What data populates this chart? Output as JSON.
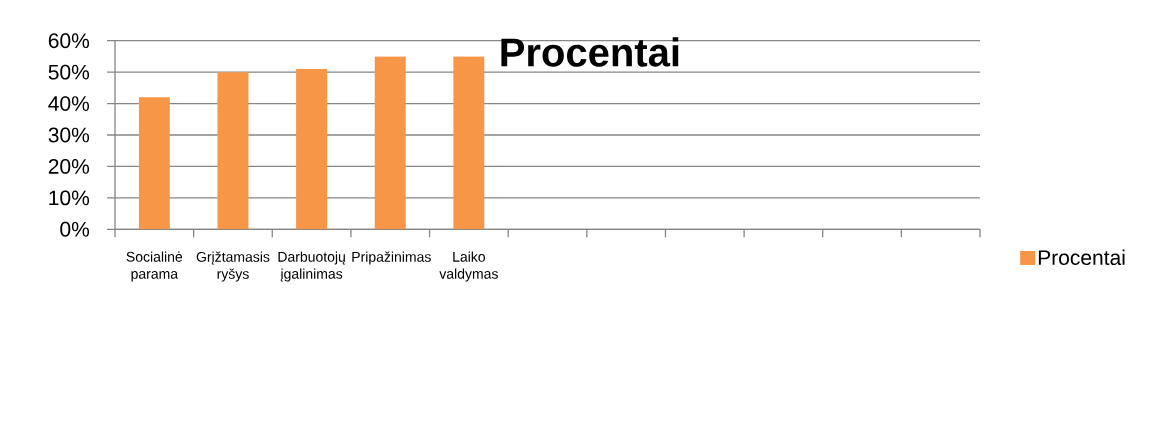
{
  "chart_data": {
    "type": "bar",
    "title": "Procentai",
    "categories": [
      "Socialinė parama",
      "Grįžtamasis ryšys",
      "Darbuotojų įgalinimas",
      "Pripažinimas",
      "Laiko valdymas",
      null,
      null,
      null,
      null,
      null,
      null
    ],
    "series": [
      {
        "name": "Procentai",
        "color": "#f79646",
        "values": [
          42,
          50,
          51,
          55,
          55,
          null,
          null,
          null,
          null,
          null,
          null
        ]
      }
    ],
    "ylim": [
      0,
      60
    ],
    "yticks": [
      {
        "value": 0,
        "label": "0%"
      },
      {
        "value": 10,
        "label": "10%"
      },
      {
        "value": 20,
        "label": "20%"
      },
      {
        "value": 30,
        "label": "30%"
      },
      {
        "value": 40,
        "label": "40%"
      },
      {
        "value": 50,
        "label": "50%"
      },
      {
        "value": 60,
        "label": "60%"
      }
    ],
    "grid": "y",
    "legend": "right"
  }
}
